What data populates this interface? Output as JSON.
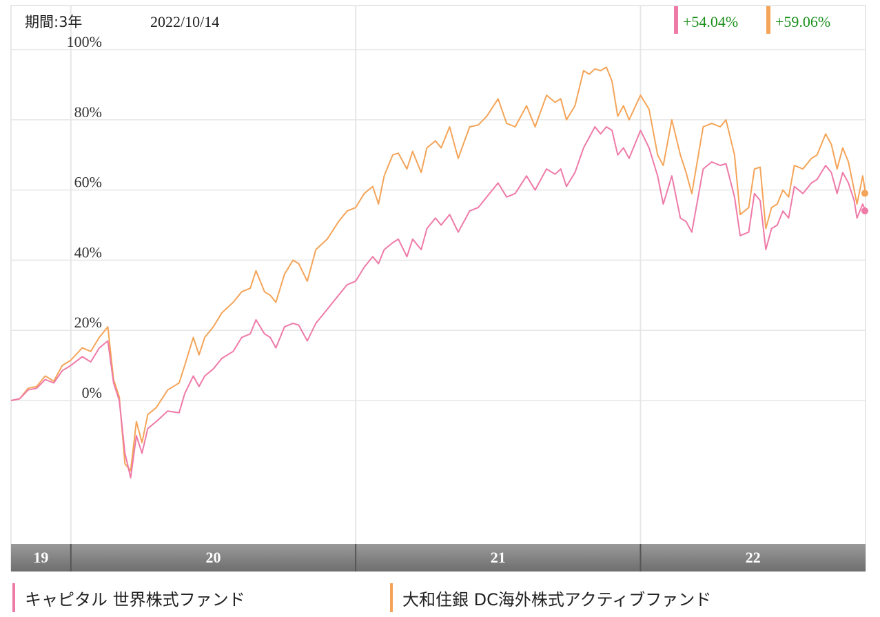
{
  "chart_data": {
    "type": "line",
    "period_label": "期間:3年",
    "date_label": "2022/10/14",
    "y_ticks": [
      "100%",
      "80%",
      "60%",
      "40%",
      "20%",
      "0%"
    ],
    "ylim": [
      -40,
      100
    ],
    "year_labels": [
      "19",
      "20",
      "21",
      "22"
    ],
    "x_start": 2019.79,
    "x_end": 2022.79,
    "series": [
      {
        "name": "キャピタル 世界株式ファンド",
        "color": "#ee7aa8",
        "end_label": "+54.04%",
        "points": [
          [
            2019.79,
            0.0
          ],
          [
            2019.82,
            0.5
          ],
          [
            2019.85,
            3.0
          ],
          [
            2019.88,
            3.5
          ],
          [
            2019.91,
            6.0
          ],
          [
            2019.94,
            5.0
          ],
          [
            2019.97,
            8.5
          ],
          [
            2020.0,
            10.0
          ],
          [
            2020.04,
            12.5
          ],
          [
            2020.07,
            11.0
          ],
          [
            2020.1,
            15.0
          ],
          [
            2020.13,
            17.0
          ],
          [
            2020.15,
            5.0
          ],
          [
            2020.17,
            0.0
          ],
          [
            2020.19,
            -15.0
          ],
          [
            2020.21,
            -22.0
          ],
          [
            2020.23,
            -10.0
          ],
          [
            2020.25,
            -15.0
          ],
          [
            2020.27,
            -8.0
          ],
          [
            2020.3,
            -6.0
          ],
          [
            2020.34,
            -3.0
          ],
          [
            2020.38,
            -3.5
          ],
          [
            2020.4,
            2.0
          ],
          [
            2020.43,
            7.0
          ],
          [
            2020.45,
            4.0
          ],
          [
            2020.47,
            7.0
          ],
          [
            2020.5,
            9.0
          ],
          [
            2020.53,
            12.0
          ],
          [
            2020.57,
            14.0
          ],
          [
            2020.6,
            18.0
          ],
          [
            2020.63,
            19.0
          ],
          [
            2020.65,
            23.0
          ],
          [
            2020.68,
            19.0
          ],
          [
            2020.7,
            18.0
          ],
          [
            2020.72,
            15.0
          ],
          [
            2020.75,
            21.0
          ],
          [
            2020.78,
            22.0
          ],
          [
            2020.8,
            21.5
          ],
          [
            2020.83,
            17.0
          ],
          [
            2020.86,
            22.0
          ],
          [
            2020.9,
            26.0
          ],
          [
            2020.94,
            30.0
          ],
          [
            2020.97,
            33.0
          ],
          [
            2021.0,
            34.0
          ],
          [
            2021.03,
            38.0
          ],
          [
            2021.06,
            41.0
          ],
          [
            2021.08,
            39.0
          ],
          [
            2021.1,
            43.0
          ],
          [
            2021.13,
            45.0
          ],
          [
            2021.15,
            46.0
          ],
          [
            2021.18,
            41.0
          ],
          [
            2021.2,
            46.0
          ],
          [
            2021.23,
            43.0
          ],
          [
            2021.25,
            49.0
          ],
          [
            2021.28,
            52.0
          ],
          [
            2021.3,
            50.0
          ],
          [
            2021.33,
            53.0
          ],
          [
            2021.36,
            48.0
          ],
          [
            2021.4,
            54.0
          ],
          [
            2021.43,
            55.0
          ],
          [
            2021.46,
            58.0
          ],
          [
            2021.5,
            62.0
          ],
          [
            2021.53,
            58.0
          ],
          [
            2021.56,
            59.0
          ],
          [
            2021.6,
            64.0
          ],
          [
            2021.63,
            60.0
          ],
          [
            2021.67,
            66.0
          ],
          [
            2021.7,
            64.5
          ],
          [
            2021.72,
            66.0
          ],
          [
            2021.74,
            61.0
          ],
          [
            2021.77,
            65.0
          ],
          [
            2021.8,
            72.0
          ],
          [
            2021.84,
            78.0
          ],
          [
            2021.86,
            76.0
          ],
          [
            2021.88,
            78.0
          ],
          [
            2021.9,
            77.0
          ],
          [
            2021.92,
            70.0
          ],
          [
            2021.94,
            72.0
          ],
          [
            2021.96,
            69.0
          ],
          [
            2022.0,
            77.0
          ],
          [
            2022.03,
            72.0
          ],
          [
            2022.06,
            64.0
          ],
          [
            2022.08,
            56.0
          ],
          [
            2022.11,
            64.0
          ],
          [
            2022.14,
            52.0
          ],
          [
            2022.16,
            51.0
          ],
          [
            2022.18,
            48.0
          ],
          [
            2022.22,
            66.0
          ],
          [
            2022.25,
            68.0
          ],
          [
            2022.28,
            67.0
          ],
          [
            2022.3,
            67.5
          ],
          [
            2022.33,
            58.0
          ],
          [
            2022.35,
            47.0
          ],
          [
            2022.38,
            48.0
          ],
          [
            2022.4,
            59.0
          ],
          [
            2022.42,
            57.0
          ],
          [
            2022.44,
            43.0
          ],
          [
            2022.46,
            49.0
          ],
          [
            2022.48,
            50.0
          ],
          [
            2022.5,
            54.0
          ],
          [
            2022.52,
            52.0
          ],
          [
            2022.54,
            61.0
          ],
          [
            2022.57,
            59.0
          ],
          [
            2022.6,
            62.0
          ],
          [
            2022.62,
            63.0
          ],
          [
            2022.65,
            67.0
          ],
          [
            2022.67,
            65.0
          ],
          [
            2022.69,
            59.0
          ],
          [
            2022.71,
            65.0
          ],
          [
            2022.73,
            62.0
          ],
          [
            2022.75,
            57.0
          ],
          [
            2022.76,
            52.0
          ],
          [
            2022.78,
            56.0
          ],
          [
            2022.79,
            54.04
          ]
        ]
      },
      {
        "name": "大和住銀 DC海外株式アクティブファンド",
        "color": "#f4a458",
        "end_label": "+59.06%",
        "points": [
          [
            2019.79,
            0.0
          ],
          [
            2019.82,
            0.5
          ],
          [
            2019.85,
            3.5
          ],
          [
            2019.88,
            4.0
          ],
          [
            2019.91,
            7.0
          ],
          [
            2019.94,
            5.5
          ],
          [
            2019.97,
            10.0
          ],
          [
            2020.0,
            11.5
          ],
          [
            2020.04,
            15.0
          ],
          [
            2020.07,
            14.0
          ],
          [
            2020.1,
            18.0
          ],
          [
            2020.13,
            21.0
          ],
          [
            2020.15,
            6.0
          ],
          [
            2020.17,
            1.0
          ],
          [
            2020.19,
            -18.0
          ],
          [
            2020.21,
            -20.0
          ],
          [
            2020.23,
            -6.0
          ],
          [
            2020.25,
            -12.0
          ],
          [
            2020.27,
            -4.0
          ],
          [
            2020.3,
            -2.0
          ],
          [
            2020.34,
            3.0
          ],
          [
            2020.38,
            5.0
          ],
          [
            2020.4,
            10.0
          ],
          [
            2020.43,
            18.0
          ],
          [
            2020.45,
            13.0
          ],
          [
            2020.47,
            18.0
          ],
          [
            2020.5,
            21.0
          ],
          [
            2020.53,
            25.0
          ],
          [
            2020.57,
            28.0
          ],
          [
            2020.6,
            31.0
          ],
          [
            2020.63,
            32.0
          ],
          [
            2020.65,
            37.0
          ],
          [
            2020.68,
            31.0
          ],
          [
            2020.7,
            30.0
          ],
          [
            2020.72,
            28.0
          ],
          [
            2020.75,
            36.0
          ],
          [
            2020.78,
            40.0
          ],
          [
            2020.8,
            39.0
          ],
          [
            2020.83,
            34.0
          ],
          [
            2020.86,
            43.0
          ],
          [
            2020.9,
            46.0
          ],
          [
            2020.94,
            51.0
          ],
          [
            2020.97,
            54.0
          ],
          [
            2021.0,
            55.0
          ],
          [
            2021.03,
            59.0
          ],
          [
            2021.06,
            61.0
          ],
          [
            2021.08,
            56.0
          ],
          [
            2021.1,
            64.0
          ],
          [
            2021.13,
            70.0
          ],
          [
            2021.15,
            70.5
          ],
          [
            2021.18,
            66.0
          ],
          [
            2021.2,
            71.0
          ],
          [
            2021.23,
            65.0
          ],
          [
            2021.25,
            72.0
          ],
          [
            2021.28,
            74.0
          ],
          [
            2021.3,
            72.0
          ],
          [
            2021.33,
            78.0
          ],
          [
            2021.36,
            69.0
          ],
          [
            2021.4,
            78.0
          ],
          [
            2021.43,
            78.5
          ],
          [
            2021.46,
            81.0
          ],
          [
            2021.5,
            86.0
          ],
          [
            2021.53,
            79.0
          ],
          [
            2021.56,
            78.0
          ],
          [
            2021.6,
            84.0
          ],
          [
            2021.63,
            78.0
          ],
          [
            2021.67,
            87.0
          ],
          [
            2021.7,
            85.0
          ],
          [
            2021.72,
            86.0
          ],
          [
            2021.74,
            80.0
          ],
          [
            2021.77,
            84.0
          ],
          [
            2021.8,
            94.0
          ],
          [
            2021.82,
            93.0
          ],
          [
            2021.84,
            94.5
          ],
          [
            2021.86,
            94.0
          ],
          [
            2021.88,
            95.0
          ],
          [
            2021.9,
            91.0
          ],
          [
            2021.92,
            81.0
          ],
          [
            2021.94,
            84.0
          ],
          [
            2021.96,
            80.0
          ],
          [
            2022.0,
            87.0
          ],
          [
            2022.03,
            83.0
          ],
          [
            2022.06,
            70.0
          ],
          [
            2022.08,
            67.0
          ],
          [
            2022.11,
            80.0
          ],
          [
            2022.14,
            70.0
          ],
          [
            2022.16,
            65.0
          ],
          [
            2022.18,
            59.0
          ],
          [
            2022.22,
            78.0
          ],
          [
            2022.25,
            79.0
          ],
          [
            2022.28,
            78.0
          ],
          [
            2022.3,
            80.0
          ],
          [
            2022.33,
            70.0
          ],
          [
            2022.35,
            53.0
          ],
          [
            2022.38,
            55.0
          ],
          [
            2022.4,
            66.0
          ],
          [
            2022.42,
            66.5
          ],
          [
            2022.44,
            49.0
          ],
          [
            2022.46,
            55.0
          ],
          [
            2022.48,
            56.0
          ],
          [
            2022.5,
            60.0
          ],
          [
            2022.52,
            58.0
          ],
          [
            2022.54,
            67.0
          ],
          [
            2022.57,
            66.0
          ],
          [
            2022.6,
            69.0
          ],
          [
            2022.62,
            70.0
          ],
          [
            2022.65,
            76.0
          ],
          [
            2022.67,
            73.0
          ],
          [
            2022.69,
            66.0
          ],
          [
            2022.71,
            72.0
          ],
          [
            2022.73,
            68.0
          ],
          [
            2022.75,
            60.0
          ],
          [
            2022.76,
            56.0
          ],
          [
            2022.78,
            64.0
          ],
          [
            2022.79,
            59.06
          ]
        ]
      }
    ]
  }
}
